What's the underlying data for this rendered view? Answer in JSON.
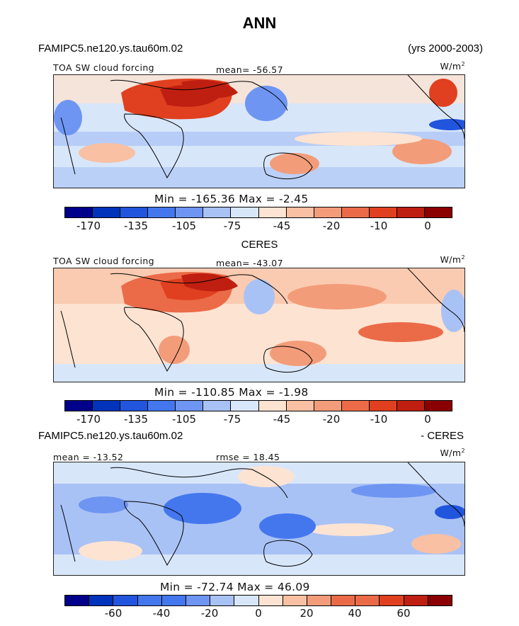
{
  "figure": {
    "title": "ANN",
    "case_name": "FAMIPC5.ne120.ys.tau60m.02",
    "years": "(yrs 2000-2003)",
    "variable": "TOA SW cloud forcing",
    "units": "W/m",
    "units_sup": "2"
  },
  "colors": {
    "abs_scale": [
      "#00008b",
      "#0033bb",
      "#2255dd",
      "#4477ee",
      "#6f95f2",
      "#a9c2f5",
      "#d8e6fa",
      "#fde3d2",
      "#f9c0a3",
      "#f39c7a",
      "#eb6b48",
      "#e0401f",
      "#bf1f10",
      "#8b0000"
    ],
    "diff_scale": [
      "#00008b",
      "#0033bb",
      "#2255dd",
      "#4477ee",
      "#6f95f2",
      "#a9c2f5",
      "#d8e6fa",
      "#fde3d2",
      "#f9c0a3",
      "#f39c7a",
      "#eb6b48",
      "#e0401f",
      "#bf1f10",
      "#8b0000"
    ],
    "coast": "#000000"
  },
  "chart_data": [
    {
      "type": "heatmap",
      "panel": "model",
      "title": "TOA SW cloud forcing",
      "mean_label": "mean= -56.57",
      "mean": -56.57,
      "min": -165.36,
      "max": -2.45,
      "minmax_label": "Min = -165.36 Max =  -2.45",
      "colorbar_ticks": [
        "-170",
        "-135",
        "-105",
        "-75",
        "-45",
        "-20",
        "-10",
        "0"
      ],
      "units": "W/m2"
    },
    {
      "type": "heatmap",
      "panel": "observation",
      "subtitle": "CERES",
      "title": "TOA SW cloud forcing",
      "mean_label": "mean= -43.07",
      "mean": -43.07,
      "min": -110.85,
      "max": -1.98,
      "minmax_label": "Min = -110.85 Max =  -1.98",
      "colorbar_ticks": [
        "-170",
        "-135",
        "-105",
        "-75",
        "-45",
        "-20",
        "-10",
        "0"
      ],
      "units": "W/m2"
    },
    {
      "type": "heatmap",
      "panel": "difference",
      "subtitle_left": "FAMIPC5.ne120.ys.tau60m.02",
      "subtitle_right": "- CERES",
      "mean_label": "mean = -13.52",
      "mean": -13.52,
      "rmse_label": "rmse =  18.45",
      "rmse": 18.45,
      "min": -72.74,
      "max": 46.09,
      "minmax_label": "Min = -72.74 Max =  46.09",
      "colorbar_ticks": [
        "-60",
        "-40",
        "-20",
        "0",
        "20",
        "40",
        "60"
      ],
      "units": "W/m2"
    }
  ]
}
